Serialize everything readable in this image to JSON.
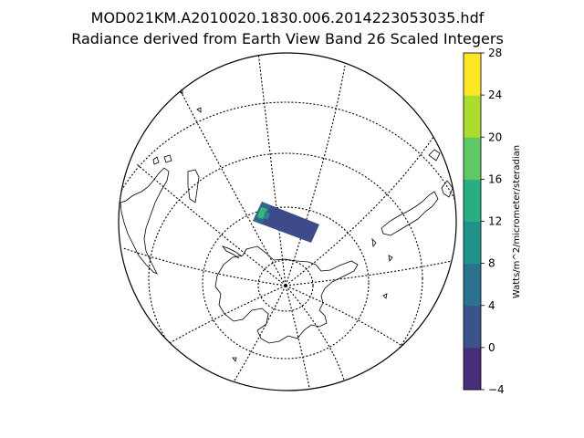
{
  "figure": {
    "title_line1": "MOD021KM.A2010020.1830.006.2014223053035.hdf",
    "title_line2": "Radiance derived from Earth View Band 26 Scaled Integers"
  },
  "colorbar": {
    "unit_label": "Watts/m^2/micrometer/steradian",
    "levels": [
      -4,
      0,
      4,
      8,
      12,
      16,
      20,
      24,
      28
    ],
    "tick_labels": [
      "−4",
      "0",
      "4",
      "8",
      "12",
      "16",
      "20",
      "24",
      "28"
    ],
    "colors": [
      "#472d7b",
      "#3b528b",
      "#2c728e",
      "#21918c",
      "#28ae80",
      "#5ec962",
      "#addc30",
      "#fde725"
    ]
  },
  "map": {
    "projection": "orthographic",
    "graticule_style": "dotted",
    "swath_colors": {
      "base": "#3e4a89",
      "mid": "#31688e",
      "high": "#35b779",
      "edge": "#26828e"
    }
  }
}
